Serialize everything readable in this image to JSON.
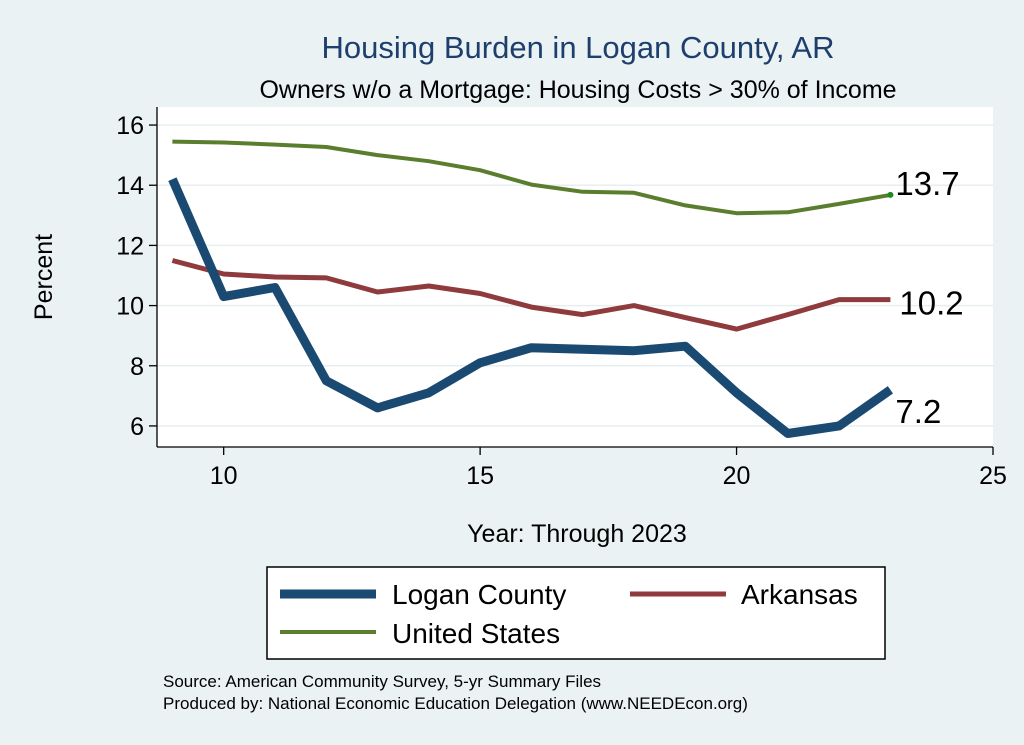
{
  "chart_data": {
    "type": "line",
    "title": "Housing Burden in Logan County, AR",
    "subtitle": "Owners w/o a Mortgage: Housing Costs > 30% of Income",
    "xlabel": "Year: Through 2023",
    "ylabel": "Percent",
    "xlim": [
      8.7,
      25
    ],
    "ylim": [
      5.3,
      16.6
    ],
    "xticks": [
      10,
      15,
      20,
      25
    ],
    "yticks": [
      6,
      8,
      10,
      12,
      14,
      16
    ],
    "x": [
      9,
      10,
      11,
      12,
      13,
      14,
      15,
      16,
      17,
      18,
      19,
      20,
      21,
      22,
      23
    ],
    "series": [
      {
        "name": "Logan County",
        "color": "#1a4a72",
        "values": [
          14.2,
          10.3,
          10.6,
          7.5,
          6.6,
          7.1,
          8.1,
          8.6,
          8.55,
          8.5,
          8.65,
          7.1,
          5.75,
          6.0,
          7.2
        ],
        "end_label": "7.2"
      },
      {
        "name": "Arkansas",
        "color": "#8f3a3c",
        "values": [
          11.5,
          11.05,
          10.95,
          10.92,
          10.45,
          10.65,
          10.4,
          9.95,
          9.7,
          10.0,
          9.6,
          9.22,
          9.7,
          10.2,
          10.2
        ],
        "end_label": "10.2"
      },
      {
        "name": "United States",
        "color": "#5a7d2e",
        "values": [
          15.45,
          15.42,
          15.35,
          15.27,
          15.0,
          14.8,
          14.5,
          14.02,
          13.78,
          13.75,
          13.33,
          13.07,
          13.1,
          13.38,
          13.68
        ],
        "end_label": "13.7"
      }
    ],
    "legend": [
      "Logan County",
      "Arkansas",
      "United States"
    ],
    "legend_position": "bottom",
    "grid": true,
    "notes": [
      "Source: American Community Survey, 5-yr Summary Files",
      "Produced by: National Economic Education Delegation (www.NEEDEcon.org)"
    ]
  }
}
